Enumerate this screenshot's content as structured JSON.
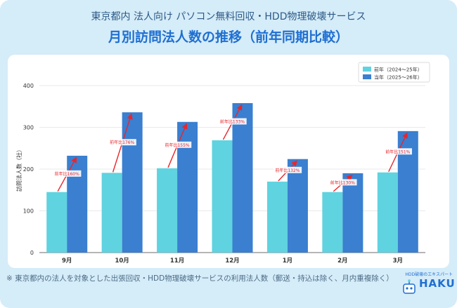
{
  "header": {
    "subtitle": "東京都内 法人向け パソコン無料回収・HDD物理破壊サービス",
    "title": "月別訪問法人数の推移（前年同期比較）"
  },
  "footnote": "※ 東京都内の法人を対象とした出張回収・HDD物理破壊サービスの利用法人数（郵送・持込は除く、月内重複除く）",
  "logo": {
    "tagline": "HDD破壊のエキスパート",
    "wordmark": "HAKU"
  },
  "colors": {
    "previous": "#5fd3df",
    "current": "#3a7fd0",
    "arrow": "#e8262c",
    "background": "#d5ecf9"
  },
  "chart_data": {
    "type": "bar",
    "title": "",
    "xlabel": "",
    "ylabel": "訪問法人数（社）",
    "ylim": [
      0,
      400
    ],
    "yticks": [
      0,
      100,
      200,
      300,
      400
    ],
    "grid": true,
    "legend_position": "top-right",
    "categories": [
      "9月",
      "10月",
      "11月",
      "12月",
      "1月",
      "2月",
      "3月"
    ],
    "series": [
      {
        "name": "前年（2024～25年）",
        "values": [
          145,
          191,
          202,
          269,
          170,
          145,
          192
        ]
      },
      {
        "name": "当年（2025～26年）",
        "values": [
          232,
          336,
          313,
          358,
          224,
          190,
          291
        ]
      }
    ],
    "annotations": [
      "前年比160%",
      "前年比176%",
      "前年比155%",
      "前年比133%",
      "前年比132%",
      "前年比130%",
      "前年比151%"
    ]
  }
}
